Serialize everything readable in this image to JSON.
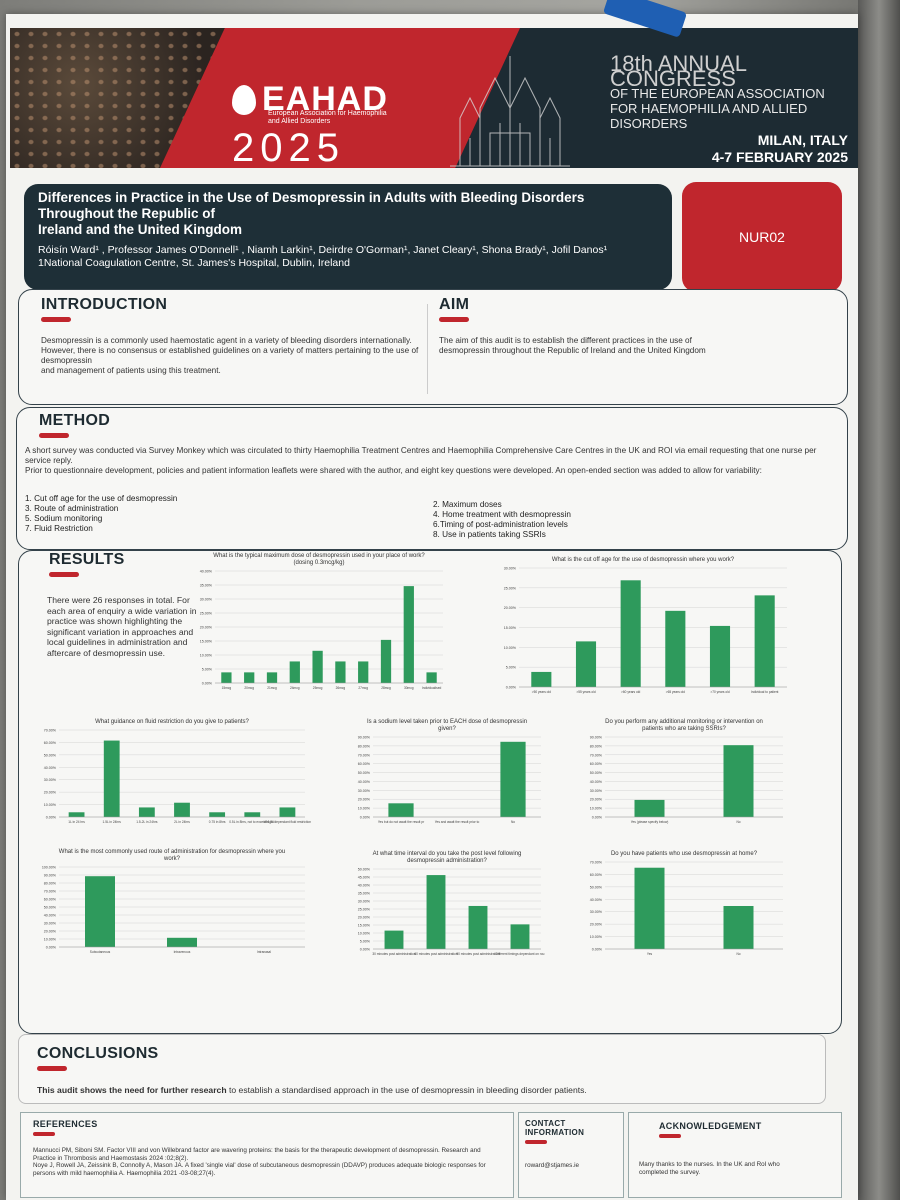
{
  "header": {
    "org": "EAHAD",
    "org_sub1": "European Association for Haemophilia",
    "org_sub2": "and Allied Disorders",
    "year": "2025",
    "congress_line1": "18th ANNUAL CONGRESS",
    "congress_line2": "OF THE EUROPEAN ASSOCIATION",
    "congress_line3": "FOR HAEMOPHILIA AND ALLIED DISORDERS",
    "city": "MILAN, ITALY",
    "dates": "4-7 FEBRUARY 2025"
  },
  "title": {
    "line1": "Differences in Practice in the Use of Desmopressin in Adults with Bleeding Disorders",
    "line2": "Throughout the Republic of",
    "line3": "Ireland and the United Kingdom",
    "authors": "Róisín Ward¹ , Professor James O'Donnell¹ , Niamh Larkin¹, Deirdre O'Gorman¹, Janet Cleary¹, Shona Brady¹, Jofil Danos¹",
    "affiliation": "1National Coagulation Centre, St. James's Hospital, Dublin, Ireland"
  },
  "poster_code": "NUR02",
  "introduction": {
    "heading": "INTRODUCTION",
    "p1": "Desmopressin is a commonly used haemostatic agent in a variety of bleeding disorders internationally.",
    "p2": "However, there is no consensus or established guidelines on a variety of matters pertaining to the use of desmopressin",
    "p3": "and management of patients using this treatment."
  },
  "aim": {
    "heading": "AIM",
    "text": "The aim of this audit is to establish the different practices in the use of desmopressin throughout the Republic of Ireland and the United Kingdom"
  },
  "method": {
    "heading": "METHOD",
    "p1": "A short survey was conducted via Survey Monkey which was circulated to thirty Haemophilia Treatment Centres and Haemophilia Comprehensive Care Centres in the UK and ROI via email requesting that one nurse per service reply.",
    "p2": "Prior to questionnaire development, policies and patient information leaflets were shared with the author, and eight key questions were developed. An open-ended section was added to allow for variability:",
    "left_items": [
      "1. Cut off age for the use of desmopressin",
      "3. Route of administration",
      "5. Sodium monitoring",
      "7. Fluid Restriction"
    ],
    "right_items": [
      "2. Maximum doses",
      "4. Home treatment with desmopressin",
      "6.Timing of post-administration levels",
      "8. Use in patients taking SSRIs"
    ]
  },
  "results": {
    "heading": "RESULTS",
    "text": "There were 26 responses in total. For each area of enquiry a wide variation in practice was shown highlighting the significant variation in approaches and local guidelines in administration and aftercare of desmopressin use."
  },
  "conclusions": {
    "heading": "CONCLUSIONS",
    "text_bold": "This audit shows the need for further research",
    "text_rest": " to establish a standardised approach in the use of desmopressin in bleeding disorder patients."
  },
  "references": {
    "heading": "REFERENCES",
    "r1": "Mannucci PM, Siboni SM. Factor VIII and von Willebrand factor are wavering proteins: the basis for the therapeutic development of desmopressin. Research and Practice in Thrombosis and Haemostasis 2024 :02;8(2).",
    "r2": "Noye J, Rowell JA, Zeissink B, Connolly A, Mason JA. A fixed 'single vial' dose of subcutaneous desmopressin (DDAVP) produces adequate biologic responses for persons with mild haemophilia A. Haemophilia 2021 -03-08;27(4)."
  },
  "contact": {
    "heading": "CONTACT INFORMATION",
    "email": "roward@stjames.ie"
  },
  "acknowledgement": {
    "heading": "ACKNOWLEDGEMENT",
    "text": "Many thanks to the nurses. In the UK and RoI who completed the survey."
  },
  "colors": {
    "bar": "#2e9a5c",
    "red": "#c0262d",
    "navy": "#1e2f37"
  },
  "chart_data": [
    {
      "id": "max-dose",
      "type": "bar",
      "title": "What is the typical maximum dose of desmopressin used in your place of work? (dosing 0.3mcg/kg)",
      "categories": [
        "15mcg",
        "20mcg",
        "21mcg",
        "24mcg",
        "25mcg",
        "26mcg",
        "27mcg",
        "28mcg",
        "30mcg",
        "Individualised"
      ],
      "values": [
        3.8,
        3.8,
        3.8,
        7.7,
        11.5,
        7.7,
        7.7,
        15.4,
        34.6,
        3.8
      ],
      "ylim": [
        0,
        40
      ],
      "yticks": [
        "0.00%",
        "5.00%",
        "10.00%",
        "15.00%",
        "20.00%",
        "25.00%",
        "30.00%",
        "35.00%",
        "40.00%"
      ]
    },
    {
      "id": "cut-off-age",
      "type": "bar",
      "title": "What is the cut off age for the use of desmopressin where you work?",
      "categories": [
        ">50 years old",
        ">55 years old",
        ">60 years old",
        ">65 years old",
        ">70 years old",
        "Individual to patient"
      ],
      "values": [
        3.8,
        11.5,
        26.9,
        19.2,
        15.4,
        23.1
      ],
      "ylim": [
        0,
        30
      ],
      "yticks": [
        "0.00%",
        "5.00%",
        "10.00%",
        "15.00%",
        "20.00%",
        "25.00%",
        "30.00%"
      ]
    },
    {
      "id": "fluid-restriction",
      "type": "bar",
      "title": "What guidance on fluid restriction do you give to patients?",
      "categories": [
        "1L in 24 hrs",
        "1.5L in 24hrs",
        "1.5-2L in 24hrs",
        "2L in 24hrs",
        "0.75 in 8hrs",
        "0.5L in 8hrs, not to exceed 1.5L in 24hrs",
        "Weight dependant fluid restriction"
      ],
      "values": [
        3.8,
        61.5,
        7.7,
        11.5,
        3.8,
        3.8,
        7.7
      ],
      "ylim": [
        0,
        70
      ],
      "yticks": [
        "0.00%",
        "10.00%",
        "20.00%",
        "30.00%",
        "40.00%",
        "50.00%",
        "60.00%",
        "70.00%"
      ]
    },
    {
      "id": "sodium-level",
      "type": "bar",
      "title": "Is a sodium level taken prior to EACH dose of desmopressin given?",
      "categories": [
        "Yes but do not await the result prior to administration of desmopressin",
        "Yes and await the result prior to administration of desmopressin",
        "No"
      ],
      "values": [
        15.4,
        0,
        84.6
      ],
      "ylim": [
        0,
        90
      ],
      "yticks": [
        "0.00%",
        "10.00%",
        "20.00%",
        "30.00%",
        "40.00%",
        "50.00%",
        "60.00%",
        "70.00%",
        "80.00%",
        "90.00%"
      ]
    },
    {
      "id": "ssri-monitoring",
      "type": "bar",
      "title": "Do you perform any additional monitoring or intervention on patients who are taking SSRIs?",
      "categories": [
        "Yes (please specify below)",
        "No"
      ],
      "values": [
        19.2,
        80.8
      ],
      "ylim": [
        0,
        90
      ],
      "yticks": [
        "0.00%",
        "10.00%",
        "20.00%",
        "30.00%",
        "40.00%",
        "50.00%",
        "60.00%",
        "70.00%",
        "80.00%",
        "90.00%"
      ]
    },
    {
      "id": "route",
      "type": "bar",
      "title": "What is the most commonly used route of administration for desmopressin where you work?",
      "categories": [
        "Subcutaneous",
        "Intravenous",
        "Intranasal"
      ],
      "values": [
        88.5,
        11.5,
        0
      ],
      "ylim": [
        0,
        100
      ],
      "yticks": [
        "0.00%",
        "10.00%",
        "20.00%",
        "30.00%",
        "40.00%",
        "50.00%",
        "60.00%",
        "70.00%",
        "80.00%",
        "90.00%",
        "100.00%"
      ]
    },
    {
      "id": "post-level-interval",
      "type": "bar",
      "title": "At what time interval do you take the post level following desmopressin administration?",
      "categories": [
        "30 minutes post administration",
        "60 minutes post administration",
        "90 minutes post administration",
        "Different timings dependant on route of administration"
      ],
      "values": [
        11.5,
        46.2,
        26.9,
        15.4
      ],
      "ylim": [
        0,
        50
      ],
      "yticks": [
        "0.00%",
        "5.00%",
        "10.00%",
        "15.00%",
        "20.00%",
        "25.00%",
        "30.00%",
        "35.00%",
        "40.00%",
        "45.00%",
        "50.00%"
      ]
    },
    {
      "id": "home-use",
      "type": "bar",
      "title": "Do you have patients who use desmopressin at home?",
      "categories": [
        "Yes",
        "No"
      ],
      "values": [
        65.4,
        34.6
      ],
      "ylim": [
        0,
        70
      ],
      "yticks": [
        "0.00%",
        "10.00%",
        "20.00%",
        "30.00%",
        "40.00%",
        "50.00%",
        "60.00%",
        "70.00%"
      ]
    }
  ]
}
